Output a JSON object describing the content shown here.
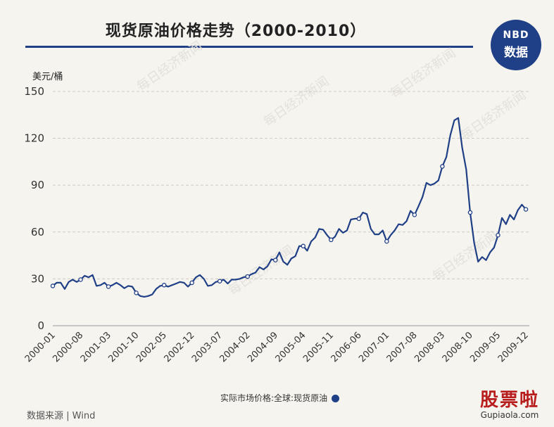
{
  "header": {
    "title": "现货原油价格走势（2000-2010）"
  },
  "logo": {
    "line1": "NBD",
    "line2": "数据"
  },
  "chart_data": {
    "type": "line",
    "ylabel": "美元/桶",
    "ylim": [
      0,
      150
    ],
    "yticks": [
      0,
      30,
      60,
      90,
      120,
      150
    ],
    "grid": true,
    "xticks": [
      "2000-01",
      "2000-08",
      "2001-03",
      "2001-10",
      "2002-05",
      "2002-12",
      "2003-07",
      "2004-02",
      "2004-09",
      "2005-04",
      "2005-11",
      "2006-06",
      "2007-01",
      "2007-08",
      "2008-03",
      "2008-10",
      "2009-05",
      "2009-12"
    ],
    "series": [
      {
        "name": "实际市场价格:全球:现货原油",
        "color": "#1f3f86",
        "x": [
          "2000-01",
          "2000-02",
          "2000-03",
          "2000-04",
          "2000-05",
          "2000-06",
          "2000-07",
          "2000-08",
          "2000-09",
          "2000-10",
          "2000-11",
          "2000-12",
          "2001-01",
          "2001-02",
          "2001-03",
          "2001-04",
          "2001-05",
          "2001-06",
          "2001-07",
          "2001-08",
          "2001-09",
          "2001-10",
          "2001-11",
          "2001-12",
          "2002-01",
          "2002-02",
          "2002-03",
          "2002-04",
          "2002-05",
          "2002-06",
          "2002-07",
          "2002-08",
          "2002-09",
          "2002-10",
          "2002-11",
          "2002-12",
          "2003-01",
          "2003-02",
          "2003-03",
          "2003-04",
          "2003-05",
          "2003-06",
          "2003-07",
          "2003-08",
          "2003-09",
          "2003-10",
          "2003-11",
          "2003-12",
          "2004-01",
          "2004-02",
          "2004-03",
          "2004-04",
          "2004-05",
          "2004-06",
          "2004-07",
          "2004-08",
          "2004-09",
          "2004-10",
          "2004-11",
          "2004-12",
          "2005-01",
          "2005-02",
          "2005-03",
          "2005-04",
          "2005-05",
          "2005-06",
          "2005-07",
          "2005-08",
          "2005-09",
          "2005-10",
          "2005-11",
          "2005-12",
          "2006-01",
          "2006-02",
          "2006-03",
          "2006-04",
          "2006-05",
          "2006-06",
          "2006-07",
          "2006-08",
          "2006-09",
          "2006-10",
          "2006-11",
          "2006-12",
          "2007-01",
          "2007-02",
          "2007-03",
          "2007-04",
          "2007-05",
          "2007-06",
          "2007-07",
          "2007-08",
          "2007-09",
          "2007-10",
          "2007-11",
          "2007-12",
          "2008-01",
          "2008-02",
          "2008-03",
          "2008-04",
          "2008-05",
          "2008-06",
          "2008-07",
          "2008-08",
          "2008-09",
          "2008-10",
          "2008-11",
          "2008-12",
          "2009-01",
          "2009-02",
          "2009-03",
          "2009-04",
          "2009-05",
          "2009-06",
          "2009-07",
          "2009-08",
          "2009-09",
          "2009-10",
          "2009-11",
          "2009-12"
        ],
        "values": [
          25.5,
          27.5,
          27.5,
          23.5,
          28,
          29.5,
          28,
          29.5,
          32,
          31,
          32.5,
          25.5,
          26,
          27.5,
          25,
          26,
          27.5,
          26,
          24,
          25.5,
          25,
          21,
          19,
          18.5,
          19,
          20,
          23.5,
          25.5,
          26,
          25,
          26,
          27,
          28,
          27.5,
          25,
          27.5,
          31,
          32.5,
          30,
          25.5,
          26,
          28,
          28.5,
          29.5,
          27,
          29.5,
          29.5,
          30,
          31,
          31.5,
          33,
          34,
          37.5,
          36,
          38,
          42.5,
          42,
          47,
          41,
          39,
          43,
          44.5,
          51,
          51,
          48,
          54,
          56.5,
          62,
          61.5,
          58,
          55,
          57,
          62,
          59.5,
          61,
          68,
          68.5,
          68.5,
          72.5,
          71.5,
          62,
          58.5,
          58.5,
          61,
          54,
          58,
          61,
          65,
          64.5,
          67,
          73.5,
          71,
          76.5,
          82.5,
          91.5,
          90,
          91,
          93,
          102,
          108,
          122,
          131.5,
          133,
          114,
          100,
          72.5,
          53,
          41,
          44,
          42,
          47,
          50,
          58,
          69,
          65,
          71,
          68,
          74,
          77.5,
          74.5
        ]
      }
    ]
  },
  "legend": {
    "label": "实际市场价格:全球:现货原油"
  },
  "source": {
    "text": "数据来源 | Wind"
  },
  "watermarks": [
    "每日经济新闻",
    "每日经济新闻",
    "每日经济新闻",
    "每日经济新闻",
    "每日经济新闻",
    "每日经济新闻"
  ],
  "brand": {
    "main": "股票啦",
    "sub": "Gupiaola.com",
    "color": "#b81d1d"
  }
}
